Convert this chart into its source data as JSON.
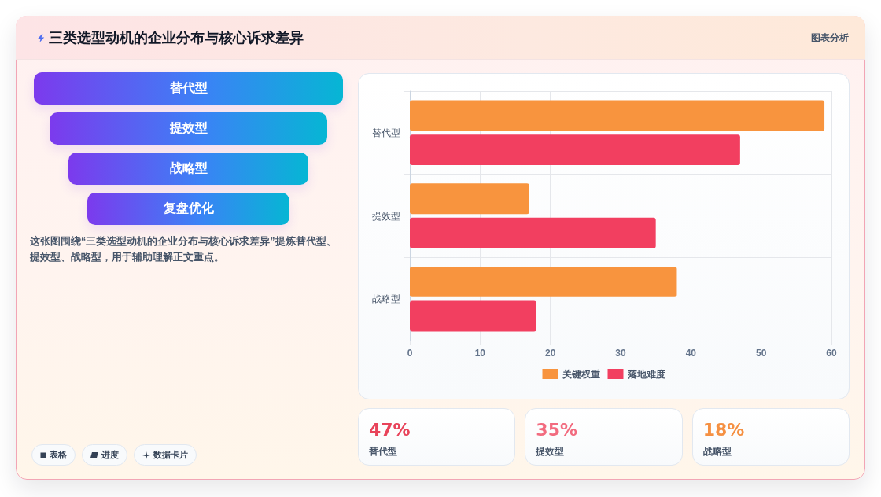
{
  "chart_data": [
    {
      "type": "other",
      "title": "三类选型动机的企业分布与核心诉求差异",
      "categories": [
        "替代型",
        "提效型",
        "战略型",
        "复盘优化"
      ],
      "annotations": [
        "图表分析",
        "这张图围绕“三类选型动机的企业分布与核心诉求差异”提炼替代型、提效型、战略型，用于辅助理解正文重点。",
        "表格",
        "进度",
        "数据卡片"
      ]
    },
    {
      "type": "bar",
      "orientation": "horizontal",
      "categories": [
        "替代型",
        "提效型",
        "战略型"
      ],
      "series": [
        {
          "name": "关键权重",
          "color": "#f8943e",
          "values": [
            59,
            17,
            38
          ]
        },
        {
          "name": "落地难度",
          "color": "#f23f60",
          "values": [
            47,
            35,
            18
          ]
        }
      ],
      "xlim": [
        0,
        60
      ],
      "xticks": [
        0,
        10,
        20,
        30,
        40,
        50,
        60
      ],
      "grid": true,
      "legend": "bottom"
    },
    {
      "type": "other",
      "categories": [
        "替代型",
        "提效型",
        "战略型"
      ],
      "value_labels": [
        "47%",
        "35%",
        "18%"
      ]
    }
  ]
}
